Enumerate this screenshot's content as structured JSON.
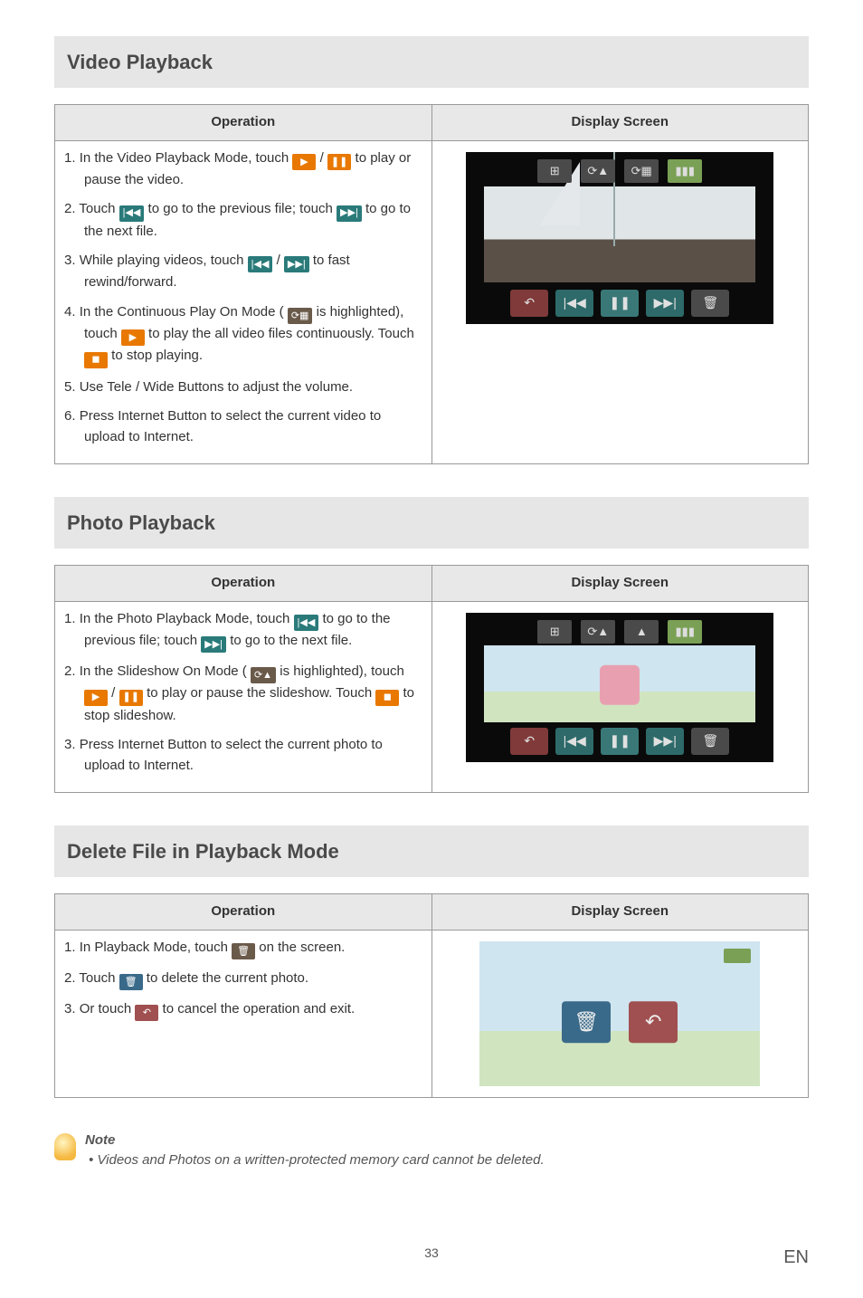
{
  "page": {
    "number": "33",
    "lang": "EN"
  },
  "sections": [
    {
      "title": "Video Playback",
      "headers": {
        "op": "Operation",
        "ds": "Display Screen"
      },
      "ops": [
        {
          "num": "1.",
          "pre": "In the Video Playback Mode, touch ",
          "icons": [
            {
              "cls": "orange-btn",
              "g": "▶"
            },
            {
              "txt": " / "
            },
            {
              "cls": "orange-btn",
              "g": "❚❚"
            }
          ],
          "post": " to play or pause the video."
        },
        {
          "num": "2.",
          "pre": "Touch ",
          "icons": [
            {
              "cls": "teal-btn",
              "g": "|◀◀"
            }
          ],
          "mid": " to go to the previous file; touch ",
          "icons2": [
            {
              "cls": "teal-btn",
              "g": "▶▶|"
            }
          ],
          "post": " to go to the next file."
        },
        {
          "num": "3.",
          "pre": "While playing videos, touch ",
          "icons": [
            {
              "cls": "teal-btn",
              "g": "|◀◀"
            },
            {
              "txt": " / "
            },
            {
              "cls": "teal-btn",
              "g": "▶▶|"
            }
          ],
          "post": " to fast rewind/forward."
        },
        {
          "num": "4.",
          "pre": "In the Continuous Play On Mode ( ",
          "icons": [
            {
              "cls": "gray-btn",
              "g": "⟳▦"
            }
          ],
          "mid": " is highlighted), touch ",
          "icons2": [
            {
              "cls": "orange-btn",
              "g": "▶"
            }
          ],
          "mid2": " to play the all video files continuously. Touch ",
          "icons3": [
            {
              "cls": "orange-btn",
              "g": "◼"
            }
          ],
          "post": " to stop playing."
        },
        {
          "num": "5.",
          "text": "Use Tele / Wide Buttons to adjust the volume."
        },
        {
          "num": "6.",
          "text": "Press Internet Button to select the current video to upload to Internet."
        }
      ],
      "screen": "video"
    },
    {
      "title": "Photo Playback",
      "headers": {
        "op": "Operation",
        "ds": "Display Screen"
      },
      "ops": [
        {
          "num": "1.",
          "pre": "In the Photo Playback Mode, touch ",
          "icons": [
            {
              "cls": "teal-btn",
              "g": "|◀◀"
            }
          ],
          "mid": " to go to the previous file; touch ",
          "icons2": [
            {
              "cls": "teal-btn",
              "g": "▶▶|"
            }
          ],
          "post": " to go to the next file."
        },
        {
          "num": "2.",
          "pre": "In the Slideshow On Mode ( ",
          "icons": [
            {
              "cls": "gray-btn",
              "g": "⟳▲"
            }
          ],
          "mid": " is highlighted), touch ",
          "icons2": [
            {
              "cls": "orange-btn",
              "g": "▶"
            },
            {
              "txt": " / "
            },
            {
              "cls": "orange-btn",
              "g": "❚❚"
            }
          ],
          "mid2": " to play or pause the slideshow. Touch ",
          "icons3": [
            {
              "cls": "orange-btn",
              "g": "◼"
            }
          ],
          "post": " to stop slideshow."
        },
        {
          "num": "3.",
          "text": "Press Internet Button to select the current photo to upload to Internet."
        }
      ],
      "screen": "photo"
    },
    {
      "title": "Delete File in Playback Mode",
      "headers": {
        "op": "Operation",
        "ds": "Display Screen"
      },
      "ops": [
        {
          "num": "1.",
          "pre": "In Playback Mode, touch ",
          "icons": [
            {
              "cls": "gray-btn",
              "g": "🗑"
            }
          ],
          "post": " on the screen."
        },
        {
          "num": "2.",
          "pre": "Touch ",
          "icons": [
            {
              "cls": "blue-btn",
              "g": "🗑"
            }
          ],
          "post": " to delete the current photo."
        },
        {
          "num": "3.",
          "pre": "Or touch ",
          "icons": [
            {
              "cls": "red-btn",
              "g": "↶"
            }
          ],
          "post": " to cancel the operation and exit."
        }
      ],
      "screen": "delete"
    }
  ],
  "note": {
    "title": "Note",
    "text": "Videos and Photos on a written-protected memory card cannot be deleted."
  },
  "screen_icons": {
    "video_top": [
      {
        "g": "⊞",
        "cls": ""
      },
      {
        "g": "⟳▲",
        "cls": ""
      },
      {
        "g": "⟳▦",
        "cls": ""
      },
      {
        "g": "▮▮▮",
        "cls": "batt"
      }
    ],
    "video_bot": [
      {
        "g": "↶",
        "cls": "red"
      },
      {
        "g": "|◀◀",
        "cls": "teal"
      },
      {
        "g": "❚❚",
        "cls": "tealL"
      },
      {
        "g": "▶▶|",
        "cls": "teal"
      },
      {
        "g": "🗑",
        "cls": "gray"
      }
    ],
    "photo_top": [
      {
        "g": "⊞",
        "cls": ""
      },
      {
        "g": "⟳▲",
        "cls": ""
      },
      {
        "g": "▲",
        "cls": ""
      },
      {
        "g": "▮▮▮",
        "cls": "batt"
      }
    ],
    "photo_bot": [
      {
        "g": "↶",
        "cls": "red"
      },
      {
        "g": "|◀◀",
        "cls": "teal"
      },
      {
        "g": "❚❚",
        "cls": "tealL"
      },
      {
        "g": "▶▶|",
        "cls": "teal"
      },
      {
        "g": "🗑",
        "cls": "gray"
      }
    ]
  }
}
